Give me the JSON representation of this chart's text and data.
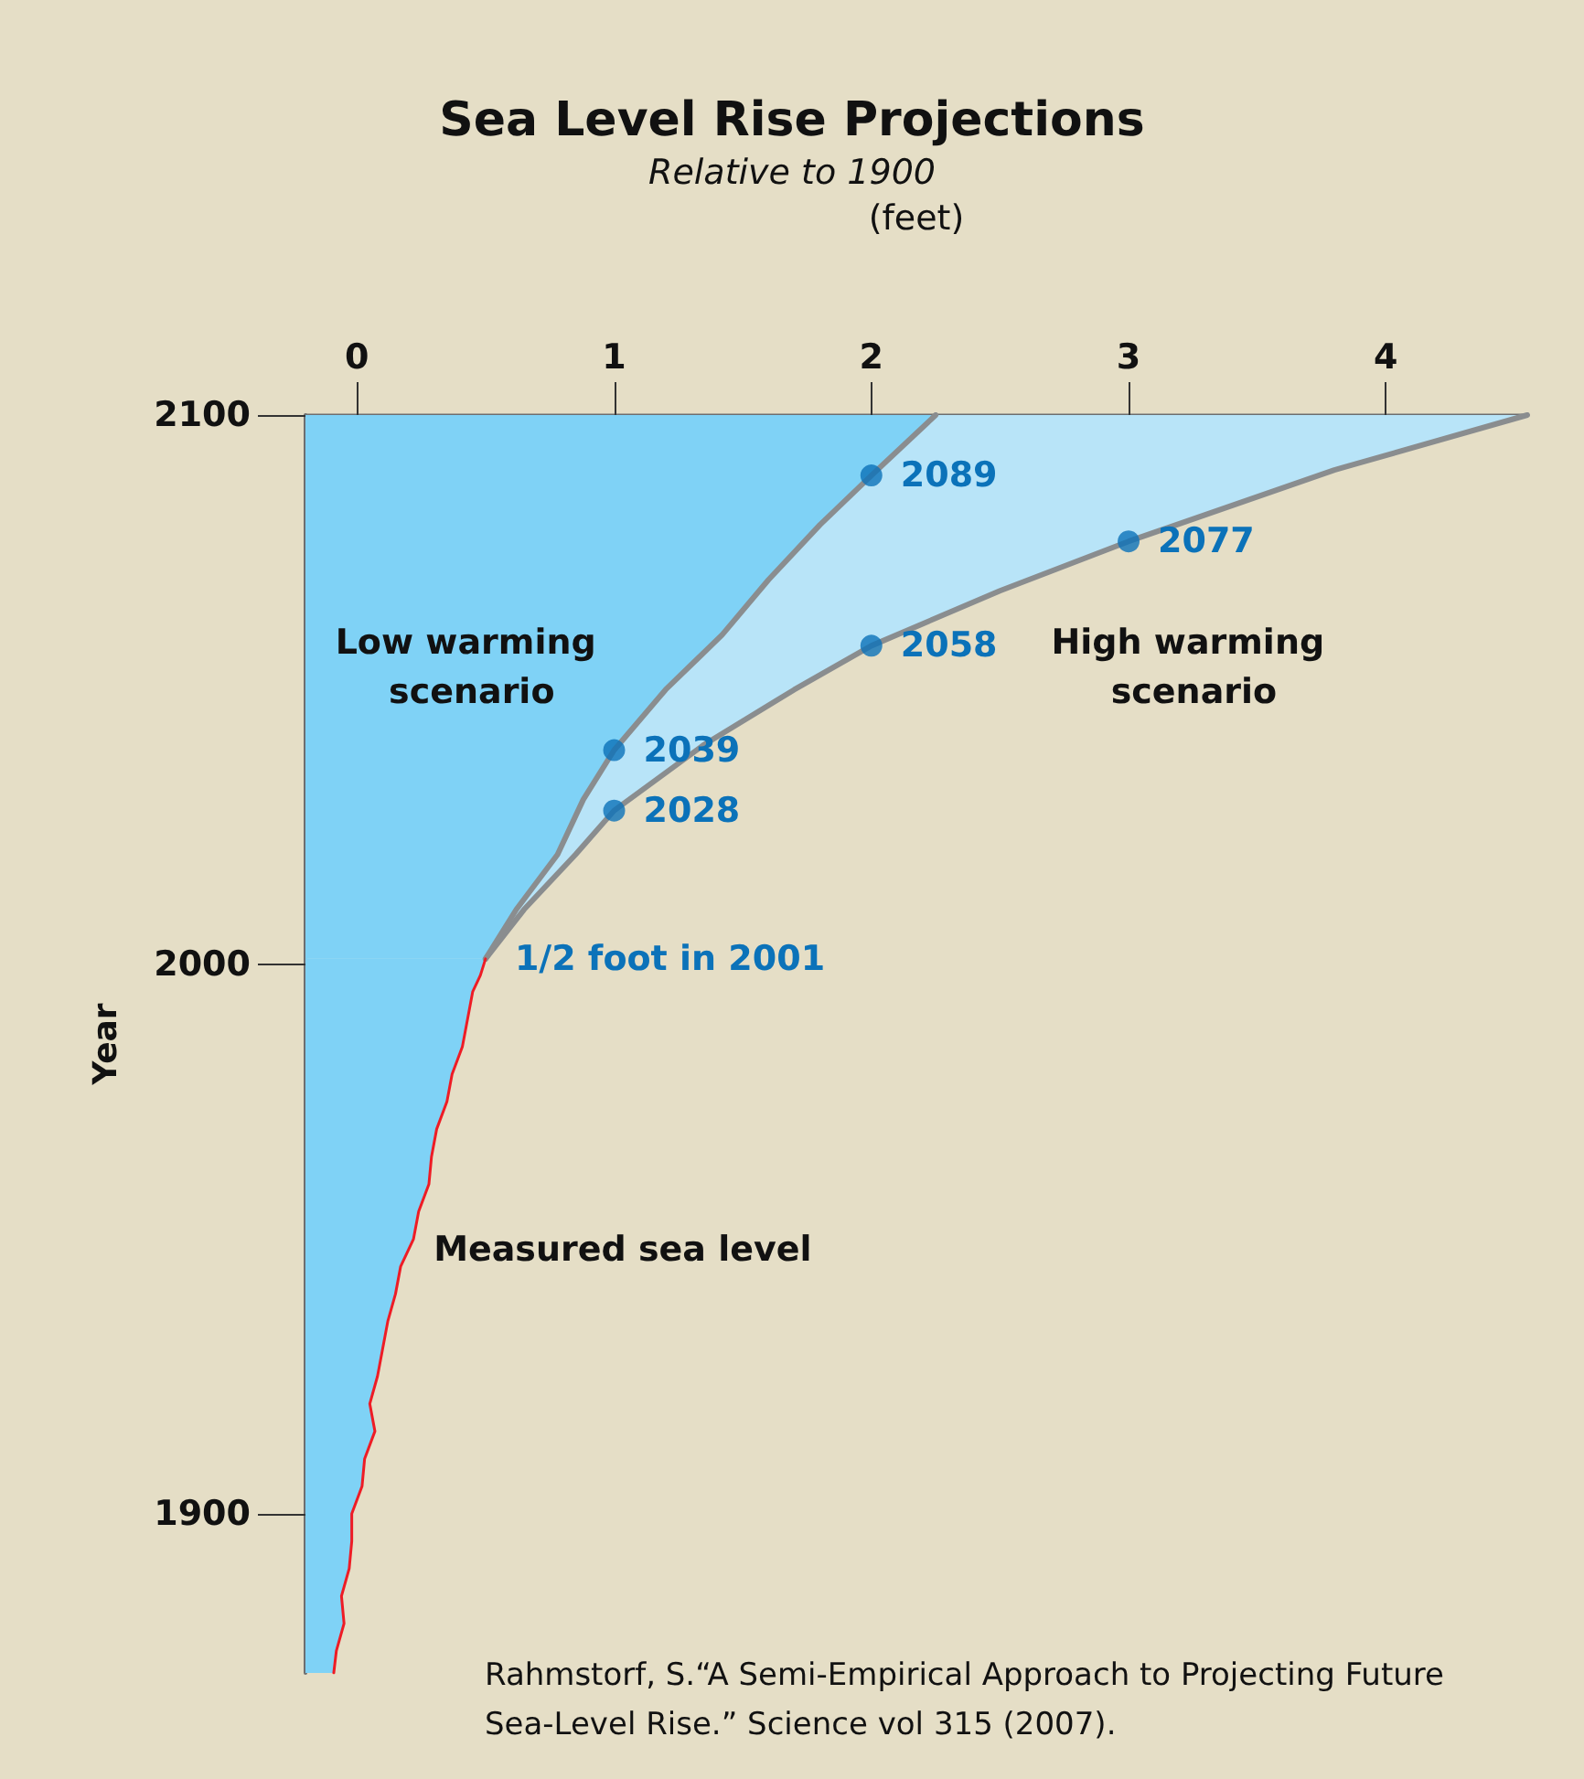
{
  "chart_data": {
    "type": "line",
    "title": "Sea Level Rise Projections",
    "subtitle": "Relative to 1900",
    "xlabel": "(feet)",
    "ylabel": "Year",
    "orientation": "horizontal",
    "xlim": [
      -0.2,
      4.55
    ],
    "xticks": [
      0,
      1,
      2,
      3,
      4
    ],
    "ylim": [
      1871,
      2100
    ],
    "yticks": [
      1900,
      2000,
      2100
    ],
    "grid": false,
    "legend": false,
    "series": [
      {
        "name": "High warming scenario",
        "color": "#8a8d8f",
        "x": [
          2001,
          2010,
          2020,
          2028,
          2040,
          2050,
          2058,
          2068,
          2077,
          2090,
          2100
        ],
        "values": [
          0.5,
          0.65,
          0.85,
          1,
          1.35,
          1.7,
          2,
          2.5,
          3,
          3.8,
          4.55
        ],
        "lower": [
          -0.2,
          -0.2,
          -0.2,
          -0.2,
          -0.2,
          -0.2,
          -0.2,
          -0.2,
          -0.2,
          -0.2,
          -0.2
        ],
        "upper": [
          0.5,
          0.65,
          0.85,
          1,
          1.35,
          1.7,
          2,
          2.5,
          3,
          3.8,
          4.55
        ]
      },
      {
        "name": "Low warming scenario",
        "color": "#8a8d8f",
        "x": [
          2001,
          2010,
          2020,
          2030,
          2039,
          2050,
          2060,
          2070,
          2080,
          2089,
          2100
        ],
        "values": [
          0.5,
          0.62,
          0.78,
          0.88,
          1,
          1.2,
          1.42,
          1.6,
          1.8,
          2,
          2.25
        ],
        "lower": [
          -0.2,
          -0.2,
          -0.2,
          -0.2,
          -0.2,
          -0.2,
          -0.2,
          -0.2,
          -0.2,
          -0.2,
          -0.2
        ],
        "upper": [
          0.5,
          0.62,
          0.78,
          0.88,
          1,
          1.2,
          1.42,
          1.6,
          1.8,
          2,
          2.25
        ]
      },
      {
        "name": "Measured sea level",
        "color": "#ee1c25",
        "x": [
          1871,
          1875,
          1880,
          1885,
          1890,
          1895,
          1900,
          1905,
          1910,
          1915,
          1920,
          1925,
          1930,
          1935,
          1940,
          1945,
          1950,
          1955,
          1960,
          1965,
          1970,
          1975,
          1980,
          1985,
          1990,
          1995,
          1998,
          2001
        ],
        "values": [
          -0.09,
          -0.08,
          -0.05,
          -0.06,
          -0.03,
          -0.02,
          -0.02,
          0.02,
          0.03,
          0.07,
          0.05,
          0.08,
          0.1,
          0.12,
          0.15,
          0.17,
          0.22,
          0.24,
          0.28,
          0.29,
          0.31,
          0.35,
          0.37,
          0.41,
          0.43,
          0.45,
          0.48,
          0.5
        ],
        "lower": [
          -0.2,
          -0.2,
          -0.2,
          -0.2,
          -0.2,
          -0.2,
          -0.2,
          -0.2,
          -0.2,
          -0.2,
          -0.2,
          -0.2,
          -0.2,
          -0.2,
          -0.2,
          -0.2,
          -0.2,
          -0.2,
          -0.2,
          -0.2,
          -0.2,
          -0.2,
          -0.2,
          -0.2,
          -0.2,
          -0.2,
          -0.2,
          -0.2
        ],
        "upper": [
          -0.09,
          -0.08,
          -0.05,
          -0.06,
          -0.03,
          -0.02,
          -0.02,
          0.02,
          0.03,
          0.07,
          0.05,
          0.08,
          0.1,
          0.12,
          0.15,
          0.17,
          0.22,
          0.24,
          0.28,
          0.29,
          0.31,
          0.35,
          0.37,
          0.41,
          0.43,
          0.45,
          0.48,
          0.5
        ]
      },
      {
        "type": "scatter",
        "color": "#0b72b9",
        "x": [
          2039,
          2089,
          2028,
          2058,
          2077
        ],
        "values": [
          1,
          2,
          1,
          2,
          3
        ]
      }
    ],
    "annotations": [
      {
        "text": "2039",
        "x": 1,
        "y": 2039
      },
      {
        "text": "2089",
        "x": 2,
        "y": 2089
      },
      {
        "text": "2028",
        "x": 1,
        "y": 2028
      },
      {
        "text": "2058",
        "x": 2,
        "y": 2058
      },
      {
        "text": "2077",
        "x": 3,
        "y": 2077
      },
      {
        "text": "1/2 foot in 2001",
        "x": 0.5,
        "y": 2001
      },
      "Rahmstorf, S.“A Semi-Empirical Approach to Projecting Future Sea-Level Rise.” Science vol 315 (2007)."
    ]
  }
}
